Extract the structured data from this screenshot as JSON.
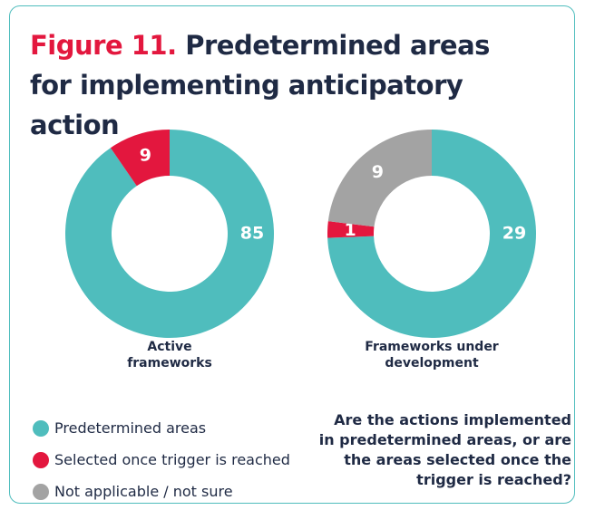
{
  "figure_label": "Figure 11.",
  "title": "Predetermined areas for implementing anticipatory action",
  "note": "Are the actions implemented in predetermined areas, or are the areas selected once the trigger is reached?",
  "chart_data": [
    {
      "type": "pie",
      "donut": true,
      "label": "Active frameworks",
      "categories": [
        "Predetermined areas",
        "Selected once trigger is reached"
      ],
      "values": [
        85,
        9
      ],
      "colors": [
        "#4fbdbd",
        "#e3173e"
      ]
    },
    {
      "type": "pie",
      "donut": true,
      "label": "Frameworks under development",
      "categories": [
        "Predetermined areas",
        "Selected once trigger is reached",
        "Not applicable / not sure"
      ],
      "values": [
        29,
        1,
        9
      ],
      "colors": [
        "#4fbdbd",
        "#e3173e",
        "#a3a3a3"
      ]
    }
  ]
}
